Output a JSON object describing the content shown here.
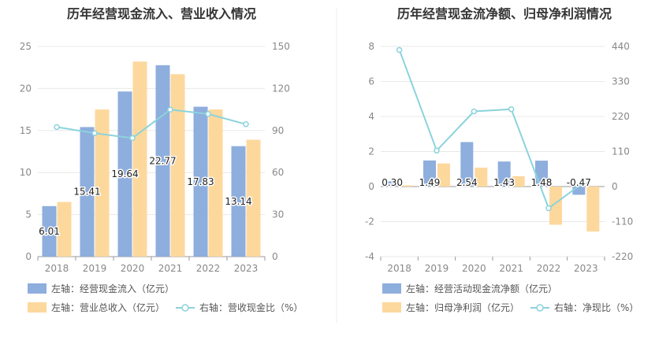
{
  "colors": {
    "bar_blue": "#8eaedd",
    "bar_yellow": "#fdd89d",
    "line_cyan": "#8bd3dc",
    "axis_text": "#888888",
    "title_text": "#333333",
    "grid": "#e8e8e8",
    "divider": "#eeeeee"
  },
  "chart_data": [
    {
      "type": "bar",
      "title": "历年经营现金流入、营业收入情况",
      "categories": [
        "2018",
        "2019",
        "2020",
        "2021",
        "2022",
        "2023"
      ],
      "left_axis": {
        "ticks": [
          "25",
          "20",
          "15",
          "10",
          "5",
          "0"
        ],
        "ylim": [
          0,
          25
        ]
      },
      "right_axis": {
        "ticks": [
          "150",
          "120",
          "90",
          "60",
          "30",
          "0"
        ],
        "ylim": [
          0,
          150
        ]
      },
      "series": [
        {
          "name": "左轴：经营现金流入（亿元）",
          "axis": "left",
          "kind": "bar",
          "color_key": "bar_blue",
          "values": [
            6.01,
            15.41,
            19.64,
            22.77,
            17.83,
            13.14
          ],
          "labels": [
            "6.01",
            "15.41",
            "19.64",
            "22.77",
            "17.83",
            "13.14"
          ]
        },
        {
          "name": "左轴：营业总收入（亿元）",
          "axis": "left",
          "kind": "bar",
          "color_key": "bar_yellow",
          "values": [
            6.5,
            17.5,
            23.2,
            21.7,
            17.5,
            13.9
          ]
        },
        {
          "name": "右轴：营收现金比（%）",
          "axis": "right",
          "kind": "line",
          "color_key": "line_cyan",
          "values": [
            92.5,
            88.1,
            84.6,
            104.9,
            101.8,
            94.5
          ]
        }
      ],
      "legend": {
        "row1": [
          "左轴：经营现金流入（亿元）"
        ],
        "row2": [
          "左轴：营业总收入（亿元）",
          "右轴：营收现金比（%）"
        ]
      }
    },
    {
      "type": "bar",
      "title": "历年经营现金流净额、归母净利润情况",
      "categories": [
        "2018",
        "2019",
        "2020",
        "2021",
        "2022",
        "2023"
      ],
      "left_axis": {
        "ticks": [
          "8",
          "6",
          "4",
          "2",
          "0",
          "-2",
          "-4"
        ],
        "ylim": [
          -4,
          8
        ]
      },
      "right_axis": {
        "ticks": [
          "440",
          "330",
          "220",
          "110",
          "0",
          "-110",
          "-220"
        ],
        "ylim": [
          -220,
          440
        ]
      },
      "series": [
        {
          "name": "左轴：经营活动现金流净额（亿元）",
          "axis": "left",
          "kind": "bar",
          "color_key": "bar_blue",
          "values": [
            0.3,
            1.49,
            2.54,
            1.43,
            1.48,
            -0.47
          ],
          "labels": [
            "0.30",
            "1.49",
            "2.54",
            "1.43",
            "1.48",
            "-0.47"
          ]
        },
        {
          "name": "左轴：归母净利润（亿元）",
          "axis": "left",
          "kind": "bar",
          "color_key": "bar_yellow",
          "values": [
            0.07,
            1.32,
            1.08,
            0.59,
            -2.18,
            -2.57
          ]
        },
        {
          "name": "右轴：净现比（%）",
          "axis": "right",
          "kind": "line",
          "color_key": "line_cyan",
          "values": [
            429,
            113,
            236,
            243,
            -68,
            18
          ]
        }
      ],
      "legend": {
        "row1": [
          "左轴：经营活动现金流净额（亿元）"
        ],
        "row2": [
          "左轴：归母净利润（亿元）",
          "右轴：净现比（%）"
        ]
      }
    }
  ]
}
